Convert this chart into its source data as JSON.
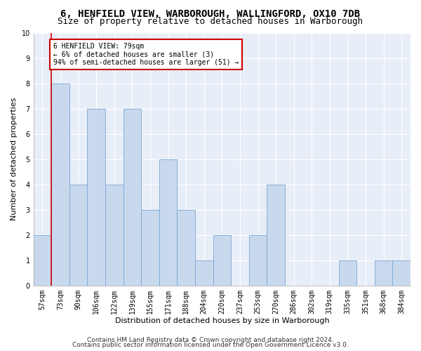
{
  "title1": "6, HENFIELD VIEW, WARBOROUGH, WALLINGFORD, OX10 7DB",
  "title2": "Size of property relative to detached houses in Warborough",
  "xlabel": "Distribution of detached houses by size in Warborough",
  "ylabel": "Number of detached properties",
  "categories": [
    "57sqm",
    "73sqm",
    "90sqm",
    "106sqm",
    "122sqm",
    "139sqm",
    "155sqm",
    "171sqm",
    "188sqm",
    "204sqm",
    "220sqm",
    "237sqm",
    "253sqm",
    "270sqm",
    "286sqm",
    "302sqm",
    "319sqm",
    "335sqm",
    "351sqm",
    "368sqm",
    "384sqm"
  ],
  "values": [
    2,
    8,
    4,
    7,
    4,
    7,
    3,
    5,
    3,
    1,
    2,
    0,
    2,
    4,
    0,
    0,
    0,
    1,
    0,
    1,
    1
  ],
  "bar_color": "#c9d9ed",
  "bar_edge_color": "#7aa6d4",
  "subject_line_color": "#cc0000",
  "annotation_box_color": "#cc0000",
  "annotation_text": "6 HENFIELD VIEW: 79sqm\n← 6% of detached houses are smaller (3)\n94% of semi-detached houses are larger (51) →",
  "ylim": [
    0,
    10
  ],
  "yticks": [
    0,
    1,
    2,
    3,
    4,
    5,
    6,
    7,
    8,
    9,
    10
  ],
  "footer1": "Contains HM Land Registry data © Crown copyright and database right 2024.",
  "footer2": "Contains public sector information licensed under the Open Government Licence v3.0.",
  "fig_bg_color": "#ffffff",
  "plot_bg_color": "#e8eef8",
  "grid_color": "#ffffff",
  "title1_fontsize": 10,
  "title2_fontsize": 9,
  "tick_fontsize": 7,
  "label_fontsize": 8,
  "annotation_fontsize": 7,
  "footer_fontsize": 6.5
}
